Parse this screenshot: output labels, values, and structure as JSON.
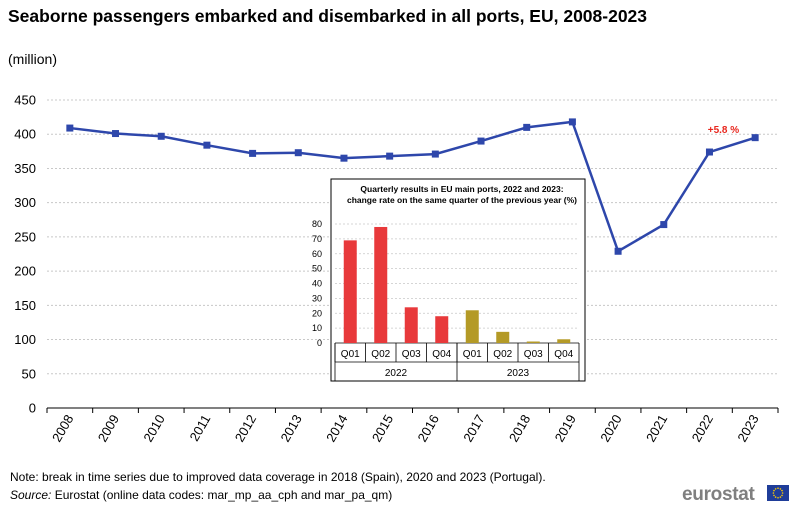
{
  "title": "Seaborne passengers embarked and disembarked in all ports, EU, 2008-2023",
  "subtitle": "(million)",
  "chart_data": [
    {
      "type": "line",
      "title": "Seaborne passengers embarked and disembarked in all ports, EU, 2008-2023",
      "ylabel": "(million)",
      "ylim": [
        0,
        450
      ],
      "yticks": [
        0,
        50,
        100,
        150,
        200,
        250,
        300,
        350,
        400,
        450
      ],
      "categories": [
        "2008",
        "2009",
        "2010",
        "2011",
        "2012",
        "2013",
        "2014",
        "2015",
        "2016",
        "2017",
        "2018",
        "2019",
        "2020",
        "2021",
        "2022",
        "2023"
      ],
      "series": [
        {
          "values": [
            409,
            401,
            397,
            384,
            372,
            373,
            365,
            368,
            371,
            390,
            410,
            418,
            229,
            268,
            374,
            395
          ],
          "color": "#2e47ab"
        }
      ],
      "annotations": [
        {
          "text": "+5.8 %",
          "category": "2022",
          "color": "#e8251c"
        }
      ],
      "grid": true
    },
    {
      "type": "bar",
      "title": "Quarterly results in EU main ports, 2022 and 2023: change rate on the same quarter of the previous year (%)",
      "ylim": [
        0,
        80
      ],
      "yticks": [
        0,
        10,
        20,
        30,
        40,
        50,
        60,
        70,
        80
      ],
      "groups": [
        {
          "label": "2022",
          "categories": [
            "Q01",
            "Q02",
            "Q03",
            "Q04"
          ],
          "values": [
            69,
            78,
            24,
            18
          ],
          "color": "#e8393b"
        },
        {
          "label": "2023",
          "categories": [
            "Q01",
            "Q02",
            "Q03",
            "Q04"
          ],
          "values": [
            22,
            7.5,
            1,
            2.5
          ],
          "color": "#b49a26"
        }
      ],
      "grid": true
    }
  ],
  "footer": {
    "note": "Note: break in time series due to improved data coverage in 2018 (Spain), 2020 and 2023 (Portugal).",
    "source_label": "Source:",
    "source_text": " Eurostat (online data codes: mar_mp_aa_cph and mar_pa_qm)",
    "logo": "eurostat"
  }
}
